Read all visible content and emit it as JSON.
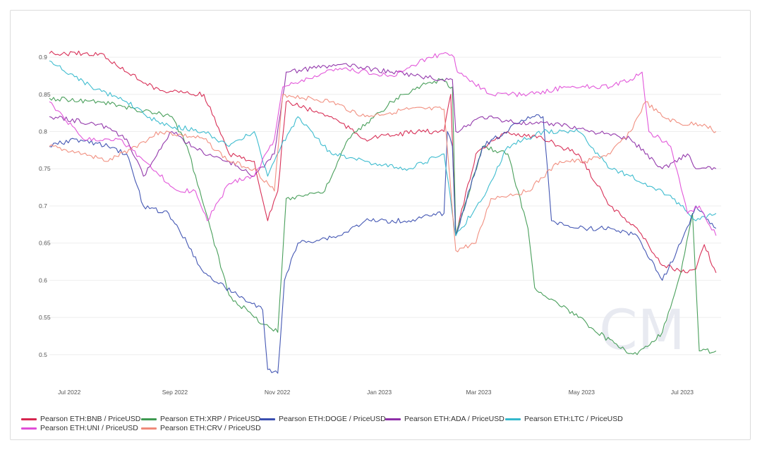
{
  "chart_data": {
    "type": "line",
    "title": "",
    "xlabel": "",
    "ylabel": "",
    "x_range": [
      "2022-06-20",
      "2023-07-25"
    ],
    "ylim": [
      0.46,
      0.92
    ],
    "y_ticks": [
      0.5,
      0.55,
      0.6,
      0.65,
      0.7,
      0.75,
      0.8,
      0.85,
      0.9
    ],
    "y_tick_labels": [
      "0.5",
      "0.55",
      "0.6",
      "0.65",
      "0.7",
      "0.75",
      "0.8",
      "0.85",
      "0.9"
    ],
    "x_ticks": [
      {
        "label": "Jul 2022",
        "date": "2022-07-01"
      },
      {
        "label": "Sep 2022",
        "date": "2022-09-01"
      },
      {
        "label": "Nov 2022",
        "date": "2022-11-01"
      },
      {
        "label": "Jan 2023",
        "date": "2023-01-01"
      },
      {
        "label": "Mar 2023",
        "date": "2023-03-01"
      },
      {
        "label": "May 2023",
        "date": "2023-05-01"
      },
      {
        "label": "Jul 2023",
        "date": "2023-07-01"
      }
    ],
    "grid": "horizontal",
    "legend_position": "bottom",
    "watermark": "CM",
    "series": [
      {
        "name": "Pearson ETH:BNB / PriceUSD",
        "color": "#d6264f",
        "points": [
          [
            "2022-06-20",
            0.905
          ],
          [
            "2022-07-20",
            0.905
          ],
          [
            "2022-08-05",
            0.88
          ],
          [
            "2022-08-25",
            0.855
          ],
          [
            "2022-09-20",
            0.85
          ],
          [
            "2022-10-05",
            0.77
          ],
          [
            "2022-10-20",
            0.76
          ],
          [
            "2022-10-28",
            0.68
          ],
          [
            "2022-11-03",
            0.72
          ],
          [
            "2022-11-08",
            0.84
          ],
          [
            "2022-12-05",
            0.82
          ],
          [
            "2022-12-25",
            0.79
          ],
          [
            "2023-01-25",
            0.8
          ],
          [
            "2023-02-10",
            0.8
          ],
          [
            "2023-02-14",
            0.85
          ],
          [
            "2023-02-17",
            0.66
          ],
          [
            "2023-03-01",
            0.77
          ],
          [
            "2023-03-20",
            0.8
          ],
          [
            "2023-04-10",
            0.79
          ],
          [
            "2023-05-01",
            0.77
          ],
          [
            "2023-05-20",
            0.7
          ],
          [
            "2023-06-05",
            0.67
          ],
          [
            "2023-06-20",
            0.62
          ],
          [
            "2023-07-05",
            0.61
          ],
          [
            "2023-07-10",
            0.615
          ],
          [
            "2023-07-15",
            0.648
          ],
          [
            "2023-07-22",
            0.61
          ]
        ]
      },
      {
        "name": "Pearson ETH:XRP / PriceUSD",
        "color": "#3f9a52",
        "points": [
          [
            "2022-06-20",
            0.845
          ],
          [
            "2022-07-20",
            0.84
          ],
          [
            "2022-08-10",
            0.83
          ],
          [
            "2022-09-01",
            0.82
          ],
          [
            "2022-09-10",
            0.78
          ],
          [
            "2022-09-20",
            0.7
          ],
          [
            "2022-10-05",
            0.58
          ],
          [
            "2022-10-20",
            0.55
          ],
          [
            "2022-11-03",
            0.53
          ],
          [
            "2022-11-08",
            0.71
          ],
          [
            "2022-12-01",
            0.72
          ],
          [
            "2022-12-15",
            0.79
          ],
          [
            "2023-01-10",
            0.84
          ],
          [
            "2023-01-25",
            0.86
          ],
          [
            "2023-02-08",
            0.87
          ],
          [
            "2023-02-15",
            0.86
          ],
          [
            "2023-02-17",
            0.66
          ],
          [
            "2023-03-05",
            0.78
          ],
          [
            "2023-03-20",
            0.77
          ],
          [
            "2023-04-01",
            0.67
          ],
          [
            "2023-04-05",
            0.59
          ],
          [
            "2023-05-01",
            0.55
          ],
          [
            "2023-05-25",
            0.51
          ],
          [
            "2023-06-05",
            0.5
          ],
          [
            "2023-06-20",
            0.53
          ],
          [
            "2023-07-01",
            0.61
          ],
          [
            "2023-07-08",
            0.69
          ],
          [
            "2023-07-12",
            0.505
          ],
          [
            "2023-07-22",
            0.505
          ]
        ]
      },
      {
        "name": "Pearson ETH:DOGE / PriceUSD",
        "color": "#3b4fb0",
        "points": [
          [
            "2022-06-20",
            0.78
          ],
          [
            "2022-07-05",
            0.79
          ],
          [
            "2022-07-25",
            0.78
          ],
          [
            "2022-08-05",
            0.77
          ],
          [
            "2022-08-15",
            0.7
          ],
          [
            "2022-08-30",
            0.69
          ],
          [
            "2022-09-10",
            0.65
          ],
          [
            "2022-09-20",
            0.61
          ],
          [
            "2022-10-10",
            0.58
          ],
          [
            "2022-10-25",
            0.56
          ],
          [
            "2022-10-28",
            0.48
          ],
          [
            "2022-11-03",
            0.475
          ],
          [
            "2022-11-07",
            0.6
          ],
          [
            "2022-11-15",
            0.65
          ],
          [
            "2022-12-10",
            0.66
          ],
          [
            "2022-12-25",
            0.68
          ],
          [
            "2023-01-20",
            0.68
          ],
          [
            "2023-02-10",
            0.69
          ],
          [
            "2023-02-12",
            0.8
          ],
          [
            "2023-02-15",
            0.78
          ],
          [
            "2023-02-17",
            0.66
          ],
          [
            "2023-03-05",
            0.78
          ],
          [
            "2023-04-01",
            0.82
          ],
          [
            "2023-04-10",
            0.82
          ],
          [
            "2023-04-15",
            0.68
          ],
          [
            "2023-05-01",
            0.67
          ],
          [
            "2023-05-20",
            0.67
          ],
          [
            "2023-06-05",
            0.66
          ],
          [
            "2023-06-20",
            0.6
          ],
          [
            "2023-07-01",
            0.65
          ],
          [
            "2023-07-10",
            0.7
          ],
          [
            "2023-07-22",
            0.67
          ]
        ]
      },
      {
        "name": "Pearson ETH:ADA / PriceUSD",
        "color": "#8e2fa8",
        "points": [
          [
            "2022-06-20",
            0.82
          ],
          [
            "2022-07-20",
            0.81
          ],
          [
            "2022-08-05",
            0.79
          ],
          [
            "2022-08-15",
            0.74
          ],
          [
            "2022-09-01",
            0.8
          ],
          [
            "2022-09-20",
            0.77
          ],
          [
            "2022-10-05",
            0.76
          ],
          [
            "2022-10-20",
            0.74
          ],
          [
            "2022-11-01",
            0.77
          ],
          [
            "2022-11-08",
            0.88
          ],
          [
            "2022-12-10",
            0.89
          ],
          [
            "2023-01-10",
            0.88
          ],
          [
            "2023-02-08",
            0.87
          ],
          [
            "2023-02-15",
            0.87
          ],
          [
            "2023-02-17",
            0.8
          ],
          [
            "2023-03-05",
            0.82
          ],
          [
            "2023-04-01",
            0.81
          ],
          [
            "2023-04-20",
            0.81
          ],
          [
            "2023-05-10",
            0.8
          ],
          [
            "2023-06-01",
            0.79
          ],
          [
            "2023-06-20",
            0.75
          ],
          [
            "2023-07-05",
            0.77
          ],
          [
            "2023-07-10",
            0.75
          ],
          [
            "2023-07-22",
            0.75
          ]
        ]
      },
      {
        "name": "Pearson ETH:LTC / PriceUSD",
        "color": "#34b8cc",
        "points": [
          [
            "2022-06-20",
            0.895
          ],
          [
            "2022-07-15",
            0.86
          ],
          [
            "2022-08-05",
            0.84
          ],
          [
            "2022-08-25",
            0.81
          ],
          [
            "2022-09-20",
            0.8
          ],
          [
            "2022-10-05",
            0.78
          ],
          [
            "2022-10-20",
            0.8
          ],
          [
            "2022-10-28",
            0.74
          ],
          [
            "2022-11-05",
            0.78
          ],
          [
            "2022-11-15",
            0.82
          ],
          [
            "2022-12-05",
            0.77
          ],
          [
            "2022-12-25",
            0.76
          ],
          [
            "2023-01-20",
            0.75
          ],
          [
            "2023-02-10",
            0.77
          ],
          [
            "2023-02-17",
            0.66
          ],
          [
            "2023-03-05",
            0.71
          ],
          [
            "2023-03-20",
            0.78
          ],
          [
            "2023-04-10",
            0.8
          ],
          [
            "2023-05-01",
            0.8
          ],
          [
            "2023-05-20",
            0.75
          ],
          [
            "2023-06-01",
            0.74
          ],
          [
            "2023-06-20",
            0.72
          ],
          [
            "2023-07-01",
            0.7
          ],
          [
            "2023-07-10",
            0.68
          ],
          [
            "2023-07-22",
            0.69
          ]
        ]
      },
      {
        "name": "Pearson ETH:UNI / PriceUSD",
        "color": "#e04fd8",
        "points": [
          [
            "2022-06-20",
            0.84
          ],
          [
            "2022-07-10",
            0.79
          ],
          [
            "2022-08-01",
            0.79
          ],
          [
            "2022-08-20",
            0.75
          ],
          [
            "2022-09-05",
            0.72
          ],
          [
            "2022-09-15",
            0.72
          ],
          [
            "2022-09-22",
            0.68
          ],
          [
            "2022-10-05",
            0.73
          ],
          [
            "2022-10-20",
            0.74
          ],
          [
            "2022-11-01",
            0.79
          ],
          [
            "2022-11-06",
            0.86
          ],
          [
            "2022-12-10",
            0.885
          ],
          [
            "2023-01-10",
            0.875
          ],
          [
            "2023-02-01",
            0.9
          ],
          [
            "2023-02-12",
            0.905
          ],
          [
            "2023-02-16",
            0.9
          ],
          [
            "2023-02-18",
            0.88
          ],
          [
            "2023-03-10",
            0.85
          ],
          [
            "2023-04-01",
            0.85
          ],
          [
            "2023-04-25",
            0.86
          ],
          [
            "2023-05-20",
            0.86
          ],
          [
            "2023-06-01",
            0.87
          ],
          [
            "2023-06-08",
            0.88
          ],
          [
            "2023-06-12",
            0.8
          ],
          [
            "2023-06-25",
            0.78
          ],
          [
            "2023-07-05",
            0.69
          ],
          [
            "2023-07-12",
            0.7
          ],
          [
            "2023-07-22",
            0.66
          ]
        ]
      },
      {
        "name": "Pearson ETH:CRV / PriceUSD",
        "color": "#f08a7a",
        "points": [
          [
            "2022-06-20",
            0.78
          ],
          [
            "2022-07-10",
            0.77
          ],
          [
            "2022-07-25",
            0.76
          ],
          [
            "2022-08-10",
            0.78
          ],
          [
            "2022-08-25",
            0.8
          ],
          [
            "2022-09-20",
            0.79
          ],
          [
            "2022-10-05",
            0.76
          ],
          [
            "2022-10-20",
            0.75
          ],
          [
            "2022-11-01",
            0.72
          ],
          [
            "2022-11-06",
            0.85
          ],
          [
            "2022-12-05",
            0.84
          ],
          [
            "2022-12-25",
            0.82
          ],
          [
            "2023-01-20",
            0.83
          ],
          [
            "2023-02-10",
            0.83
          ],
          [
            "2023-02-17",
            0.64
          ],
          [
            "2023-03-01",
            0.65
          ],
          [
            "2023-03-10",
            0.71
          ],
          [
            "2023-04-01",
            0.72
          ],
          [
            "2023-04-20",
            0.76
          ],
          [
            "2023-05-05",
            0.76
          ],
          [
            "2023-05-20",
            0.77
          ],
          [
            "2023-06-01",
            0.8
          ],
          [
            "2023-06-10",
            0.84
          ],
          [
            "2023-06-20",
            0.82
          ],
          [
            "2023-07-01",
            0.81
          ],
          [
            "2023-07-15",
            0.81
          ],
          [
            "2023-07-22",
            0.8
          ]
        ]
      }
    ]
  }
}
